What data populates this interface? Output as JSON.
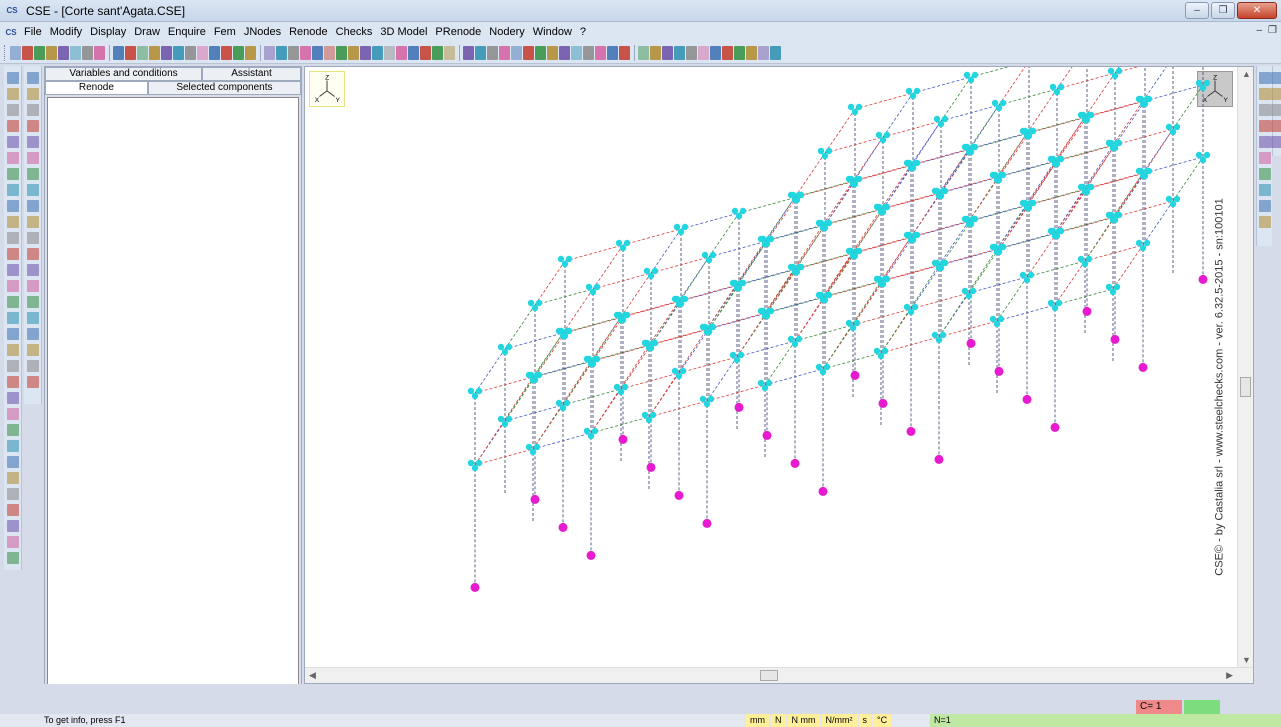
{
  "window": {
    "title": "CSE - [Corte sant'Agata.CSE]",
    "app_icon_text": "CS"
  },
  "menu": {
    "items": [
      "File",
      "Modify",
      "Display",
      "Draw",
      "Enquire",
      "Fem",
      "JNodes",
      "Renode",
      "Checks",
      "3D Model",
      "PRenode",
      "Nodery",
      "Window",
      "?"
    ]
  },
  "left_panel": {
    "tabs_top": [
      "Variables and conditions",
      "Assistant"
    ],
    "tabs_bottom": [
      "Renode",
      "Selected components"
    ]
  },
  "view": {
    "axis_labels": {
      "z": "Z",
      "x": "X",
      "y": "Y"
    },
    "watermark": "CSE© - by Castalia srl - www.steelchecks.com - ver. 6.32.5-2015 - sn:100101",
    "colors": {
      "node": "#22d6e0",
      "support": "#e81ad0",
      "beam_red": "#d93c3c",
      "beam_blue": "#4a58c8",
      "beam_green": "#3f8a3f",
      "column": "#3a3a6a"
    }
  },
  "status": {
    "counter": "C= 1",
    "help_text": "To get info, press F1",
    "units": [
      "mm",
      "N",
      "N mm",
      "N/mm²",
      "s",
      "°C"
    ],
    "nodes": "N=1"
  }
}
